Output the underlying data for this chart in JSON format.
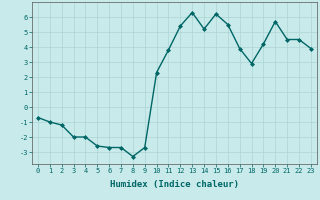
{
  "x": [
    0,
    1,
    2,
    3,
    4,
    5,
    6,
    7,
    8,
    9,
    10,
    11,
    12,
    13,
    14,
    15,
    16,
    17,
    18,
    19,
    20,
    21,
    22,
    23
  ],
  "y": [
    -0.7,
    -1.0,
    -1.2,
    -2.0,
    -2.0,
    -2.6,
    -2.7,
    -2.7,
    -3.3,
    -2.7,
    2.3,
    3.8,
    5.4,
    6.3,
    5.2,
    6.2,
    5.5,
    3.9,
    2.9,
    4.2,
    5.7,
    4.5,
    4.5,
    3.9
  ],
  "xlabel": "Humidex (Indice chaleur)",
  "xlim": [
    -0.5,
    23.5
  ],
  "ylim": [
    -3.8,
    7.0
  ],
  "yticks": [
    -3,
    -2,
    -1,
    0,
    1,
    2,
    3,
    4,
    5,
    6
  ],
  "xticks": [
    0,
    1,
    2,
    3,
    4,
    5,
    6,
    7,
    8,
    9,
    10,
    11,
    12,
    13,
    14,
    15,
    16,
    17,
    18,
    19,
    20,
    21,
    22,
    23
  ],
  "line_color": "#006666",
  "marker": "D",
  "marker_size": 2.0,
  "background_color": "#c8eaea",
  "grid_color": "#aed4d4",
  "line_width": 1.0,
  "tick_fontsize": 5.0,
  "xlabel_fontsize": 6.5
}
